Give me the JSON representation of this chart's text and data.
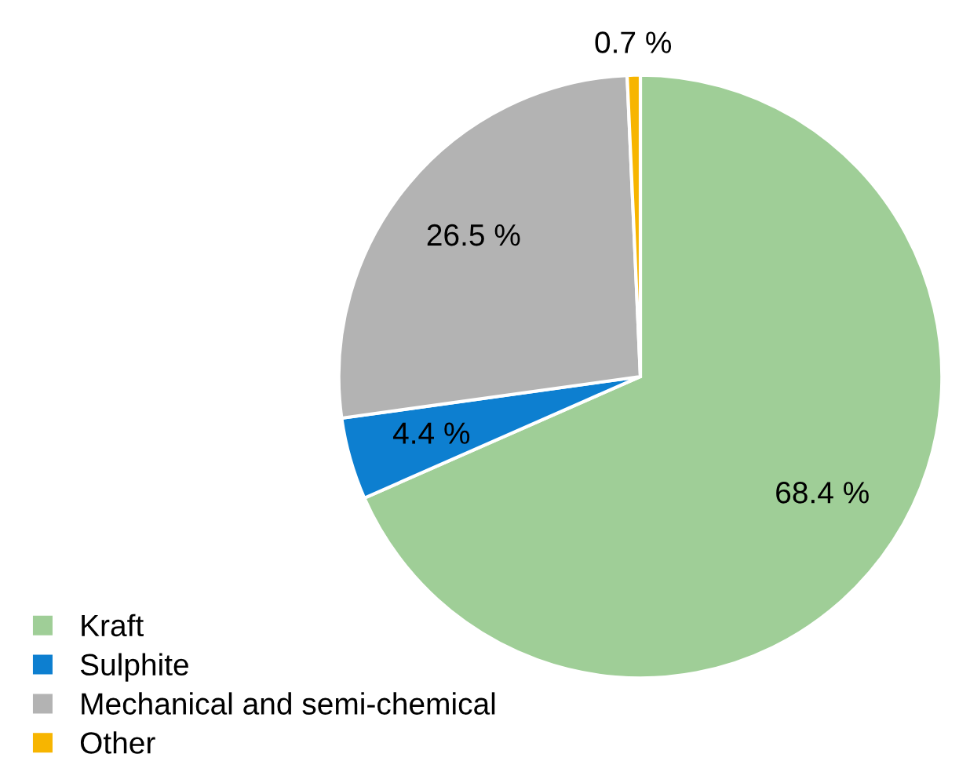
{
  "chart_data": {
    "type": "pie",
    "categories": [
      "Kraft",
      "Sulphite",
      "Mechanical and semi-chemical",
      "Other"
    ],
    "values": [
      68.4,
      4.4,
      26.5,
      0.7
    ],
    "value_labels": [
      "68.4 %",
      "4.4 %",
      "26.5 %",
      "0.7 %"
    ],
    "colors": [
      "#9fce97",
      "#0d7fd0",
      "#b3b3b3",
      "#f7b500"
    ],
    "legend": "bottom left"
  }
}
